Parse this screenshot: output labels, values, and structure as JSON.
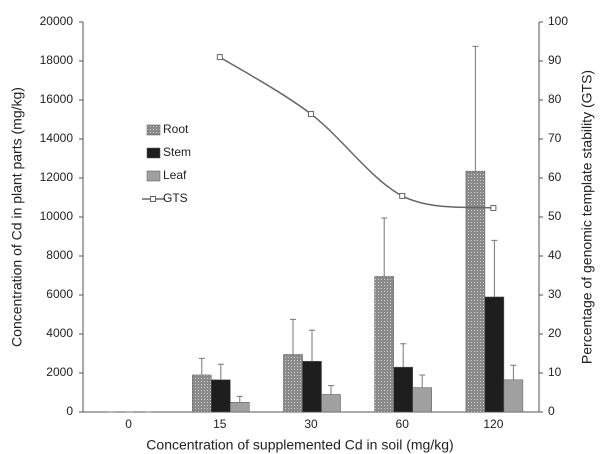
{
  "chart_data": {
    "type": "bar",
    "x_label": "Concentration of supplemented Cd in soil (mg/kg)",
    "y_label": "Concentration of Cd in plant parts (mg/kg)",
    "y2_label": "Percentage of genomic template stability (GTS)",
    "categories": [
      "0",
      "15",
      "30",
      "60",
      "120"
    ],
    "series": [
      {
        "name": "Root",
        "type": "bar",
        "color": "#8a8a8a",
        "values": [
          0,
          1900,
          2950,
          6950,
          12350
        ],
        "errors": [
          0,
          850,
          1800,
          3000,
          6400
        ]
      },
      {
        "name": "Stem",
        "type": "bar",
        "color": "#1e1e1e",
        "values": [
          0,
          1650,
          2600,
          2300,
          5900
        ],
        "errors": [
          0,
          800,
          1600,
          1200,
          2900
        ]
      },
      {
        "name": "Leaf",
        "type": "bar",
        "color": "#a0a0a0",
        "values": [
          0,
          500,
          900,
          1250,
          1650
        ],
        "errors": [
          0,
          300,
          450,
          650,
          750
        ]
      },
      {
        "name": "GTS",
        "type": "line",
        "axis": "y2",
        "color": "#666666",
        "values": [
          null,
          91,
          76.4,
          55.4,
          52.3
        ]
      }
    ],
    "ylim": [
      0,
      20000
    ],
    "yticks": [
      0,
      2000,
      4000,
      6000,
      8000,
      10000,
      12000,
      14000,
      16000,
      18000,
      20000
    ],
    "y2lim": [
      0,
      100
    ],
    "y2ticks": [
      0,
      10,
      20,
      30,
      40,
      50,
      60,
      70,
      80,
      90,
      100
    ],
    "grid": false,
    "legend": "left"
  }
}
